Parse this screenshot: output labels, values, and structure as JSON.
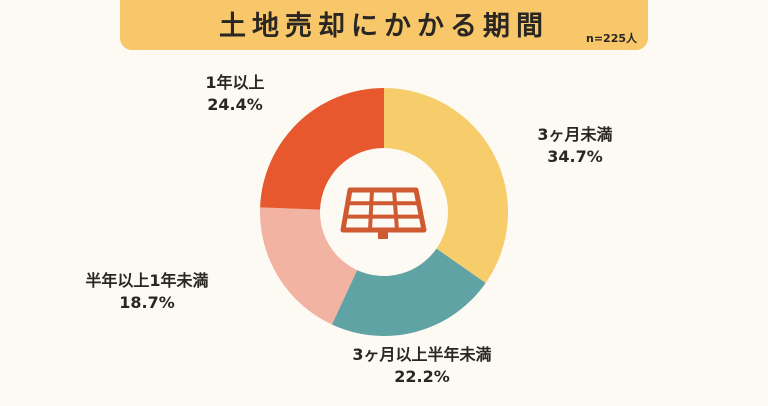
{
  "title": "土地売却にかかる期間",
  "sample_size": "n=225人",
  "colors": {
    "title_banner": "#f7c76a",
    "background": "#fdfaf3",
    "center_icon": "#cf5a32"
  },
  "center_icon": "solar-panel-icon",
  "chart_data": {
    "type": "pie",
    "donut": true,
    "categories": [
      "3ヶ月未満",
      "3ヶ月以上半年未満",
      "半年以上1年未満",
      "1年以上"
    ],
    "values": [
      34.7,
      22.2,
      18.7,
      24.4
    ],
    "value_labels": [
      "34.7%",
      "22.2%",
      "18.7%",
      "24.4%"
    ],
    "colors": [
      "#f7cc6a",
      "#5fa3a4",
      "#f3b3a2",
      "#e8582e"
    ],
    "title": "土地売却にかかる期間",
    "start_angle": "12 o'clock",
    "direction": "clockwise"
  }
}
